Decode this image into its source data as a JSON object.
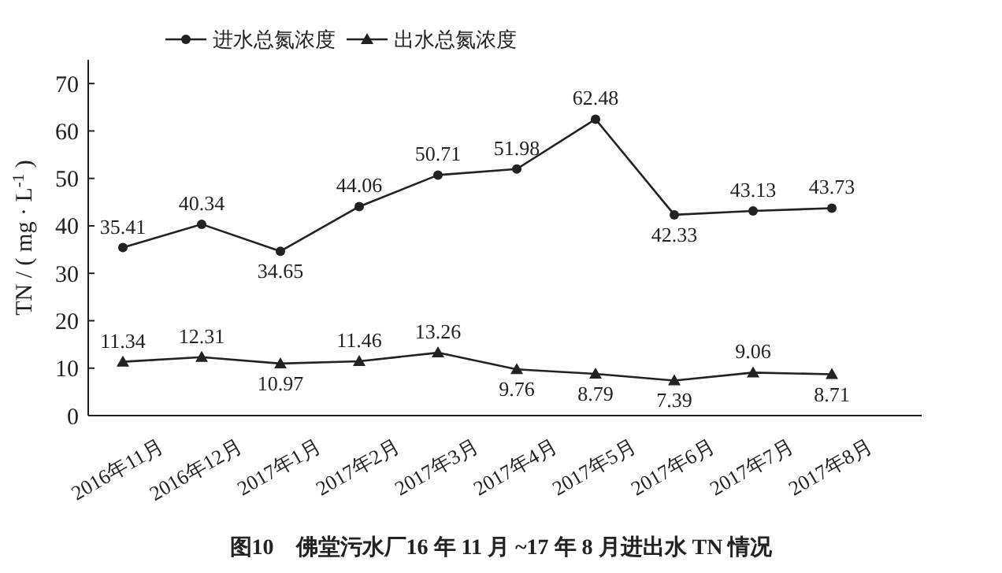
{
  "chart_data": {
    "type": "line",
    "title": "图10　佛堂污水厂16 年 11 月 ~17 年 8 月进出水 TN 情况",
    "ylabel": "TN / ( mg · L$^{-1}$ )",
    "categories": [
      "2016年11月",
      "2016年12月",
      "2017年1月",
      "2017年2月",
      "2017年3月",
      "2017年4月",
      "2017年5月",
      "2017年6月",
      "2017年7月",
      "2017年8月"
    ],
    "series": [
      {
        "name": "进水总氮浓度",
        "color": "#222222",
        "marker": "circle",
        "values": [
          35.41,
          40.34,
          34.65,
          44.06,
          50.71,
          51.98,
          62.48,
          42.33,
          43.13,
          43.73
        ]
      },
      {
        "name": "出水总氮浓度",
        "color": "#222222",
        "marker": "triangle",
        "values": [
          11.34,
          12.31,
          10.97,
          11.46,
          13.26,
          9.76,
          8.79,
          7.39,
          9.06,
          8.71
        ]
      }
    ],
    "ylim": [
      0,
      75
    ],
    "yticks": [
      0,
      10,
      20,
      30,
      40,
      50,
      60,
      70
    ],
    "grid": false,
    "legend": "top left",
    "data_labels": true,
    "line_style": "solid"
  }
}
